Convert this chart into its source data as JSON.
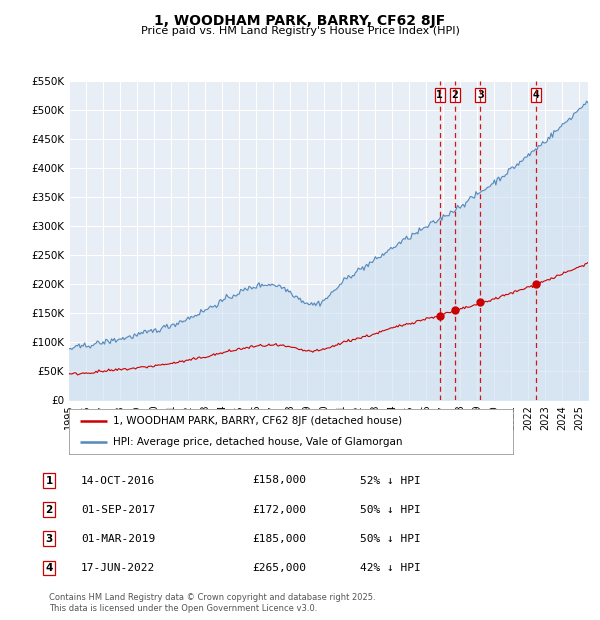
{
  "title": "1, WOODHAM PARK, BARRY, CF62 8JF",
  "subtitle": "Price paid vs. HM Land Registry's House Price Index (HPI)",
  "legend_label_red": "1, WOODHAM PARK, BARRY, CF62 8JF (detached house)",
  "legend_label_blue": "HPI: Average price, detached house, Vale of Glamorgan",
  "footer": "Contains HM Land Registry data © Crown copyright and database right 2025.\nThis data is licensed under the Open Government Licence v3.0.",
  "transactions": [
    {
      "num": 1,
      "date": "14-OCT-2016",
      "date_x": 2016.79,
      "price": 158000,
      "pct": "52%",
      "vline_x": 2016.79
    },
    {
      "num": 2,
      "date": "01-SEP-2017",
      "date_x": 2017.67,
      "price": 172000,
      "pct": "50%",
      "vline_x": 2017.67
    },
    {
      "num": 3,
      "date": "01-MAR-2019",
      "date_x": 2019.17,
      "price": 185000,
      "pct": "50%",
      "vline_x": 2019.17
    },
    {
      "num": 4,
      "date": "17-JUN-2022",
      "date_x": 2022.46,
      "price": 265000,
      "pct": "42%",
      "vline_x": 2022.46
    }
  ],
  "ylim": [
    0,
    550000
  ],
  "xlim": [
    1995,
    2025.5
  ],
  "yticks": [
    0,
    50000,
    100000,
    150000,
    200000,
    250000,
    300000,
    350000,
    400000,
    450000,
    500000,
    550000
  ],
  "ytick_labels": [
    "£0",
    "£50K",
    "£100K",
    "£150K",
    "£200K",
    "£250K",
    "£300K",
    "£350K",
    "£400K",
    "£450K",
    "£500K",
    "£550K"
  ],
  "xticks": [
    1995,
    1996,
    1997,
    1998,
    1999,
    2000,
    2001,
    2002,
    2003,
    2004,
    2005,
    2006,
    2007,
    2008,
    2009,
    2010,
    2011,
    2012,
    2013,
    2014,
    2015,
    2016,
    2017,
    2018,
    2019,
    2020,
    2021,
    2022,
    2023,
    2024,
    2025
  ],
  "background_color": "#ffffff",
  "plot_bg_color": "#e8eef5",
  "grid_color": "#ffffff",
  "red_color": "#cc0000",
  "blue_color": "#5588bb",
  "blue_fill_color": "#cce0f0",
  "vline_color": "#cc0000",
  "marker_color_red": "#cc0000",
  "marker_color_blue": "#5588bb",
  "table_rows": [
    {
      "num": "1",
      "date": "14-OCT-2016",
      "price": "£158,000",
      "pct": "52% ↓ HPI"
    },
    {
      "num": "2",
      "date": "01-SEP-2017",
      "price": "£172,000",
      "pct": "50% ↓ HPI"
    },
    {
      "num": "3",
      "date": "01-MAR-2019",
      "price": "£185,000",
      "pct": "50% ↓ HPI"
    },
    {
      "num": "4",
      "date": "17-JUN-2022",
      "price": "£265,000",
      "pct": "42% ↓ HPI"
    }
  ]
}
